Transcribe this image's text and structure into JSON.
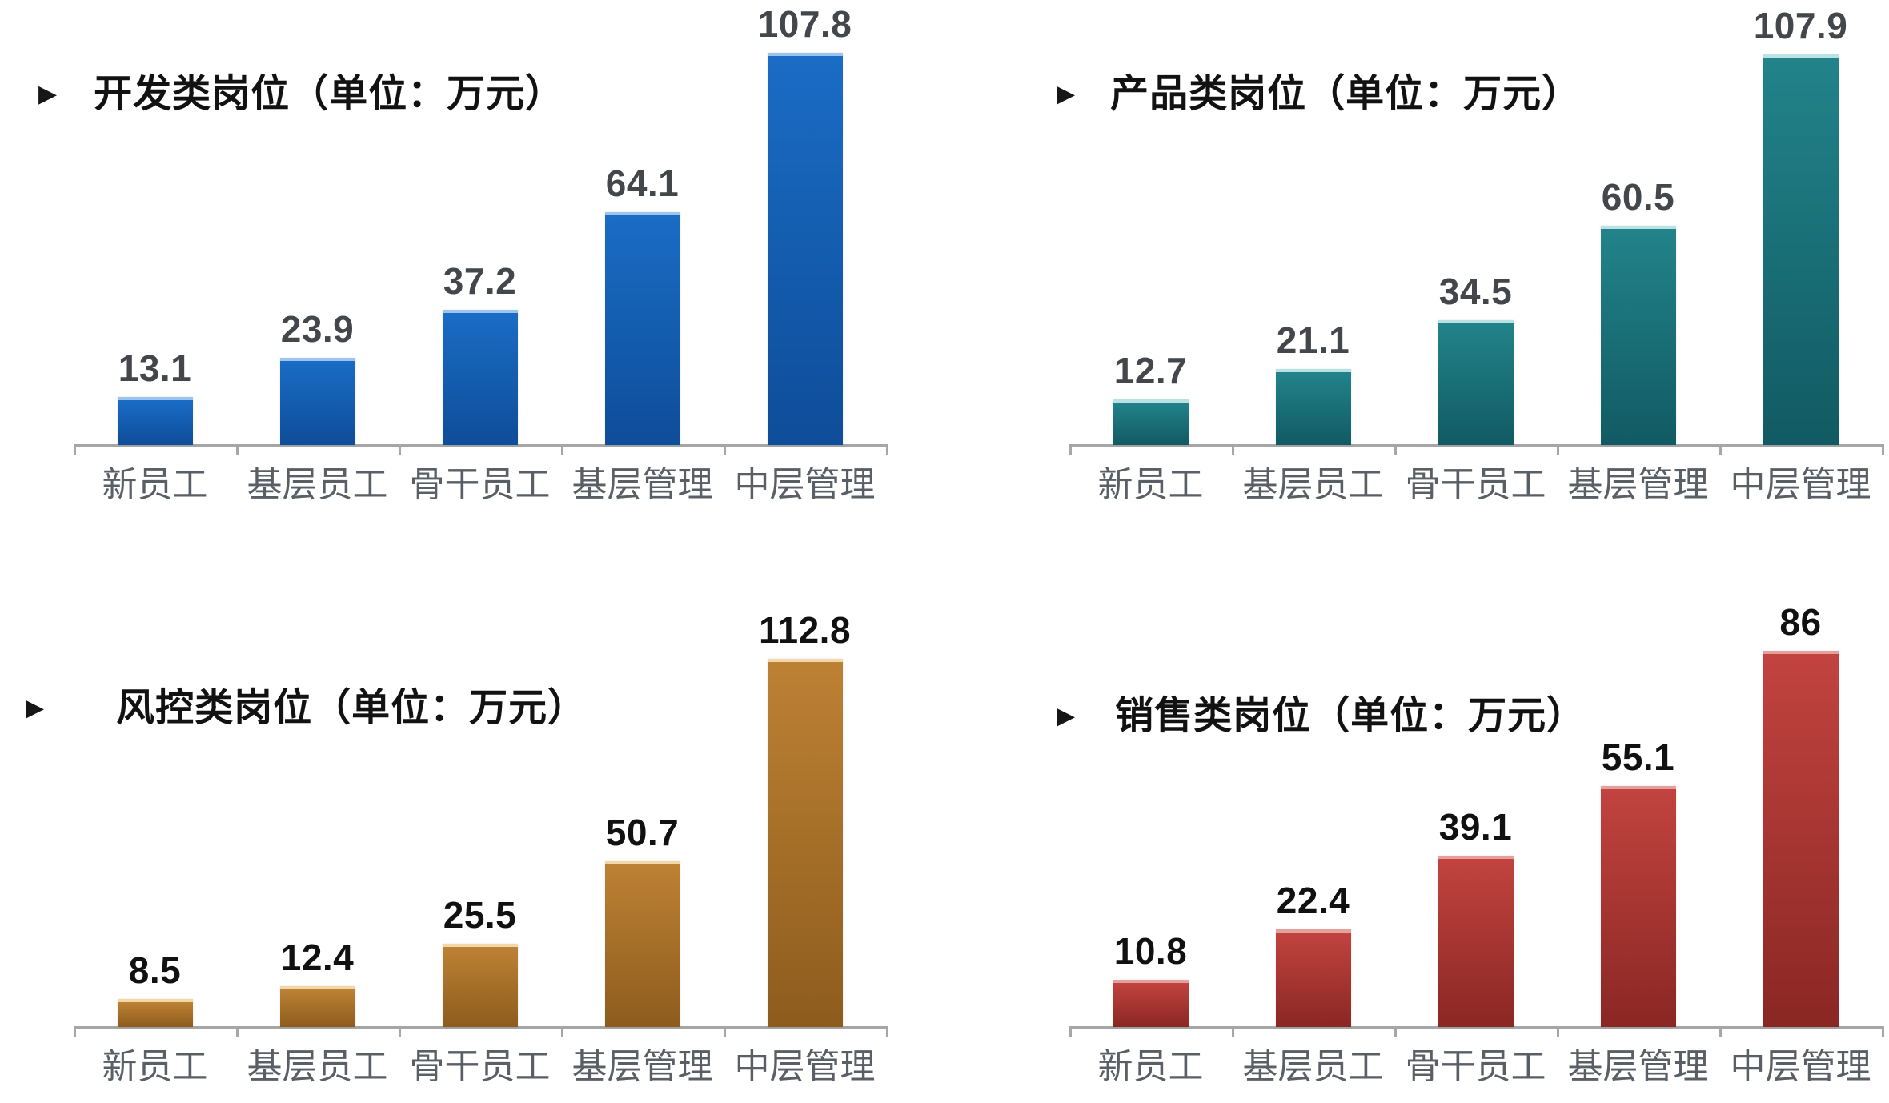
{
  "ui": {
    "background": "#ffffff",
    "bullet_icon": "▶",
    "axis_color": "#a6a6a6",
    "category_label_color": "#5a5f66"
  },
  "chart_data": [
    {
      "type": "bar",
      "position": "top-left",
      "title": "开发类岗位（单位：万元）",
      "unit": "万元",
      "categories": [
        "新员工",
        "基层员工",
        "骨干员工",
        "基层管理",
        "中层管理"
      ],
      "values": [
        13.1,
        23.9,
        37.2,
        64.1,
        107.8
      ],
      "value_labels": [
        "13.1",
        "23.9",
        "37.2",
        "64.1",
        "107.8"
      ],
      "value_label_color": "#43464b",
      "bar_color_top": "#1a6cc5",
      "bar_color_bottom": "#0e4d99",
      "bar_edge_color": "#9cc5ee",
      "ylim": [
        0,
        120
      ],
      "grid": false,
      "legend": false
    },
    {
      "type": "bar",
      "position": "top-right",
      "title": "产品类岗位（单位：万元）",
      "unit": "万元",
      "categories": [
        "新员工",
        "基层员工",
        "骨干员工",
        "基层管理",
        "中层管理"
      ],
      "values": [
        12.7,
        21.1,
        34.5,
        60.5,
        107.9
      ],
      "value_labels": [
        "12.7",
        "21.1",
        "34.5",
        "60.5",
        "107.9"
      ],
      "value_label_color": "#43464b",
      "bar_color_top": "#22838a",
      "bar_color_bottom": "#115a63",
      "bar_edge_color": "#b9e2e5",
      "ylim": [
        0,
        120
      ],
      "grid": false,
      "legend": false
    },
    {
      "type": "bar",
      "position": "bottom-left",
      "title": "风控类岗位（单位：万元）",
      "unit": "万元",
      "categories": [
        "新员工",
        "基层员工",
        "骨干员工",
        "基层管理",
        "中层管理"
      ],
      "values": [
        8.5,
        12.4,
        25.5,
        50.7,
        112.8
      ],
      "value_labels": [
        "8.5",
        "12.4",
        "25.5",
        "50.7",
        "112.8"
      ],
      "value_label_color": "#111111",
      "bar_color_top": "#bd8134",
      "bar_color_bottom": "#8d5c1d",
      "bar_edge_color": "#f2d8a9",
      "ylim": [
        0,
        120
      ],
      "grid": false,
      "legend": false
    },
    {
      "type": "bar",
      "position": "bottom-right",
      "title": "销售类岗位（单位：万元）",
      "unit": "万元",
      "categories": [
        "新员工",
        "基层员工",
        "骨干员工",
        "基层管理",
        "中层管理"
      ],
      "values": [
        10.8,
        22.4,
        39.1,
        55.1,
        86
      ],
      "value_labels": [
        "10.8",
        "22.4",
        "39.1",
        "55.1",
        "86"
      ],
      "value_label_color": "#111111",
      "bar_color_top": "#c2433f",
      "bar_color_bottom": "#8a2723",
      "bar_edge_color": "#e5a09c",
      "ylim": [
        0,
        120
      ],
      "grid": false,
      "legend": false
    }
  ]
}
